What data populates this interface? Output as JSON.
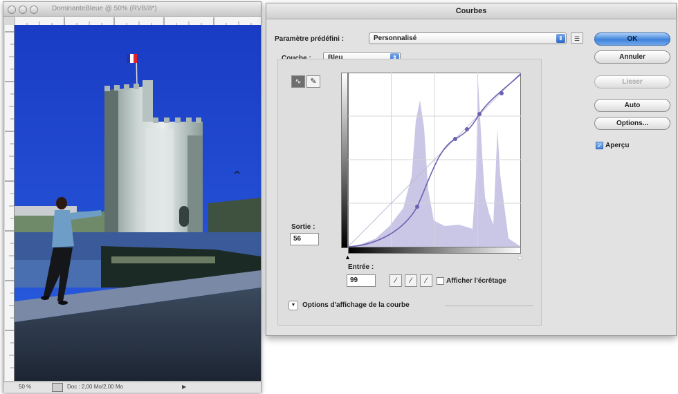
{
  "document": {
    "title": "DominanteBleue @ 50% (RVB/8*)",
    "status": {
      "zoom": "50 %",
      "info": "Doc : 2,00 Mo/2,00 Mo",
      "arrow": "▶"
    }
  },
  "dialog": {
    "title": "Courbes",
    "preset": {
      "label": "Paramètre prédéfini :",
      "value": "Personnalisé"
    },
    "channel": {
      "label": "Couche :",
      "value": "Bleu"
    },
    "buttons": {
      "ok": "OK",
      "cancel": "Annuler",
      "smooth": "Lisser",
      "auto": "Auto",
      "options": "Options..."
    },
    "preview": {
      "label": "Aperçu",
      "checked": true
    },
    "output": {
      "label": "Sortie :",
      "value": "56"
    },
    "input": {
      "label": "Entrée :",
      "value": "99"
    },
    "show_clipping": {
      "label": "Afficher l'écrêtage",
      "checked": false
    },
    "curve_options": {
      "label": "Options d'affichage de la courbe"
    }
  },
  "colors": {
    "sky": "#1740c9",
    "histogram": "#c9c6e6",
    "curve": "#6a62b0",
    "ok_button": "#3f83db"
  },
  "icons": {
    "point_tool": "curve-point-icon",
    "pencil_tool": "pencil-icon",
    "black_point": "black-eyedropper-icon",
    "gray_point": "gray-eyedropper-icon",
    "white_point": "white-eyedropper-icon"
  }
}
